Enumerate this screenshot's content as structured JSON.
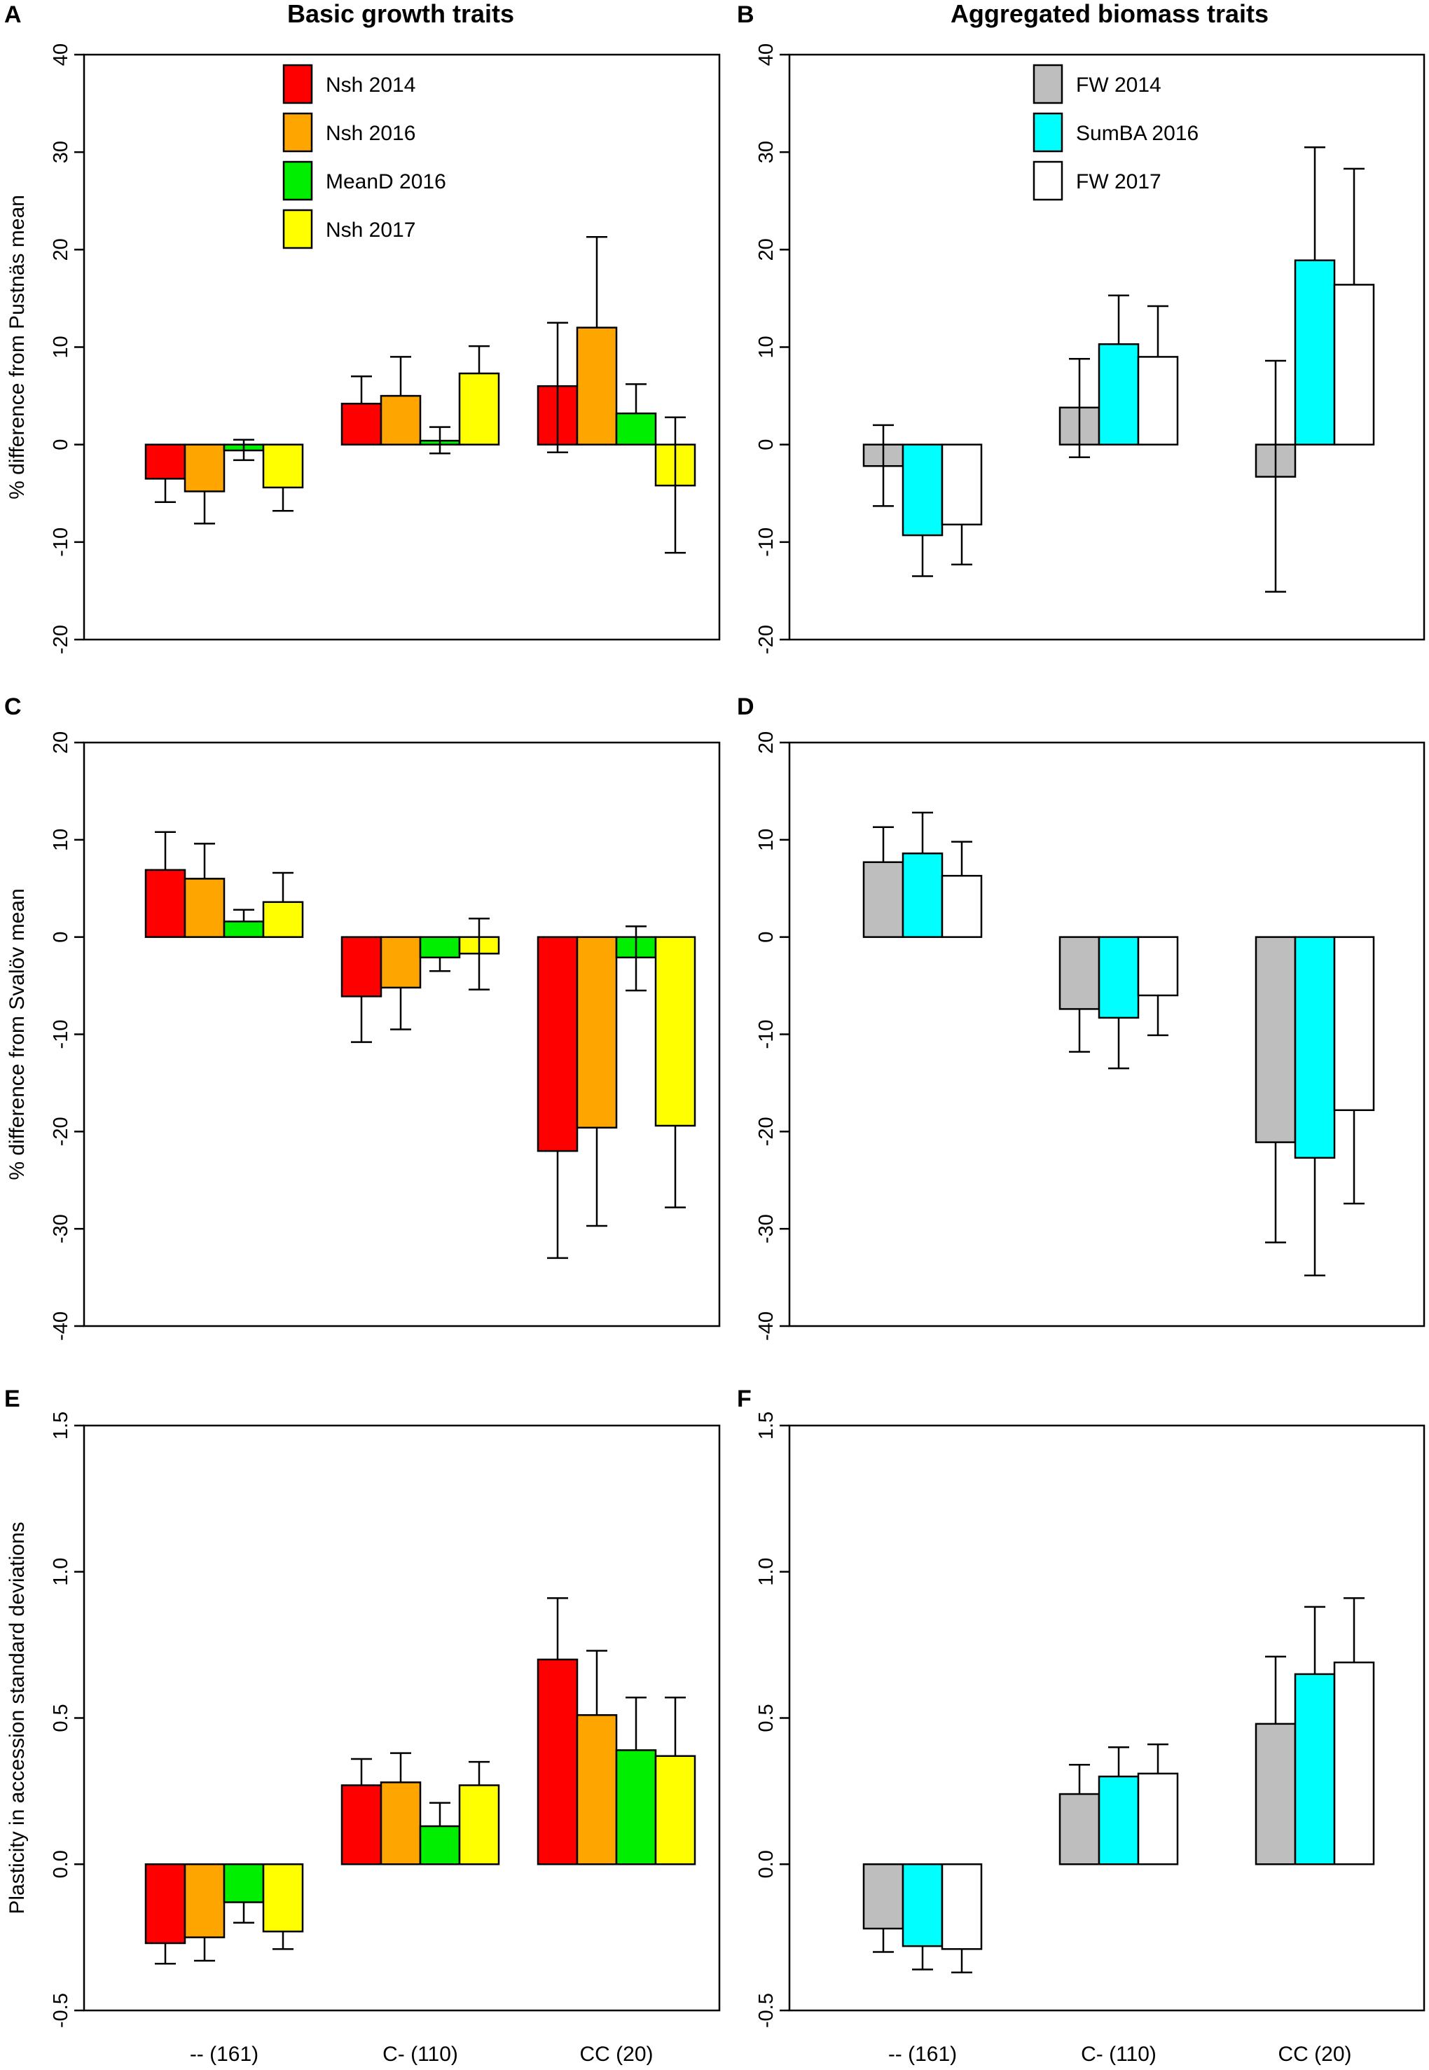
{
  "column_titles": [
    "Basic growth traits",
    "Aggregated biomass traits"
  ],
  "x_categories": [
    "-- (161)",
    "C- (110)",
    "CC (20)"
  ],
  "colors": {
    "Nsh 2014": "#ff0000",
    "Nsh 2016": "#ffa500",
    "MeanD 2016": "#00ee00",
    "Nsh 2017": "#ffff00",
    "FW 2014": "#bebebe",
    "SumBA 2016": "#00ffff",
    "FW 2017": "#ffffff"
  },
  "chart_data": [
    {
      "panel": "A",
      "type": "bar",
      "title": "Basic growth traits",
      "ylabel": "% difference from Pustnäs mean",
      "ylim": [
        -20,
        40
      ],
      "yticks": [
        -20,
        -10,
        0,
        10,
        20,
        30,
        40
      ],
      "categories": [
        "-- (161)",
        "C- (110)",
        "CC (20)"
      ],
      "legend": [
        "Nsh 2014",
        "Nsh 2016",
        "MeanD 2016",
        "Nsh 2017"
      ],
      "series": [
        {
          "name": "Nsh 2014",
          "values": [
            -3.5,
            4.2,
            6.0
          ],
          "err_low": [
            -5.9,
            0,
            -0.8
          ],
          "err_high": [
            0,
            7.0,
            12.5
          ]
        },
        {
          "name": "Nsh 2016",
          "values": [
            -4.8,
            5.0,
            12.0
          ],
          "err_low": [
            -8.1,
            0,
            0
          ],
          "err_high": [
            0,
            9.0,
            21.3
          ]
        },
        {
          "name": "MeanD 2016",
          "values": [
            -0.6,
            0.4,
            3.2
          ],
          "err_low": [
            -1.6,
            -0.9,
            0
          ],
          "err_high": [
            0.5,
            1.8,
            6.2
          ]
        },
        {
          "name": "Nsh 2017",
          "values": [
            -4.4,
            7.3,
            -4.2
          ],
          "err_low": [
            -6.8,
            0,
            -11.1
          ],
          "err_high": [
            0,
            10.1,
            2.8
          ]
        }
      ]
    },
    {
      "panel": "B",
      "type": "bar",
      "title": "Aggregated biomass traits",
      "ylabel": "",
      "ylim": [
        -20,
        40
      ],
      "yticks": [
        -20,
        -10,
        0,
        10,
        20,
        30,
        40
      ],
      "categories": [
        "-- (161)",
        "C- (110)",
        "CC (20)"
      ],
      "legend": [
        "FW 2014",
        "SumBA 2016",
        "FW 2017"
      ],
      "series": [
        {
          "name": "FW 2014",
          "values": [
            -2.2,
            3.8,
            -3.3
          ],
          "err_low": [
            -6.3,
            -1.3,
            -15.1
          ],
          "err_high": [
            2.0,
            8.8,
            8.6
          ]
        },
        {
          "name": "SumBA 2016",
          "values": [
            -9.3,
            10.3,
            18.9
          ],
          "err_low": [
            -13.5,
            0,
            0
          ],
          "err_high": [
            0,
            15.3,
            30.5
          ]
        },
        {
          "name": "FW 2017",
          "values": [
            -8.2,
            9.0,
            16.4
          ],
          "err_low": [
            -12.3,
            0,
            0
          ],
          "err_high": [
            0,
            14.2,
            28.3
          ]
        }
      ]
    },
    {
      "panel": "C",
      "type": "bar",
      "title": "",
      "ylabel": "% difference from Svalöv mean",
      "ylim": [
        -40,
        20
      ],
      "yticks": [
        -40,
        -30,
        -20,
        -10,
        0,
        10,
        20
      ],
      "categories": [
        "-- (161)",
        "C- (110)",
        "CC (20)"
      ],
      "legend": [],
      "series": [
        {
          "name": "Nsh 2014",
          "values": [
            6.9,
            -6.1,
            -22.0
          ],
          "err_low": [
            0,
            -10.8,
            -33.0
          ],
          "err_high": [
            10.8,
            0,
            0
          ]
        },
        {
          "name": "Nsh 2016",
          "values": [
            6.0,
            -5.2,
            -19.6
          ],
          "err_low": [
            0,
            -9.5,
            -29.7
          ],
          "err_high": [
            9.6,
            0,
            0
          ]
        },
        {
          "name": "MeanD 2016",
          "values": [
            1.6,
            -2.1,
            -2.1
          ],
          "err_low": [
            0,
            -3.5,
            -5.5
          ],
          "err_high": [
            2.8,
            0,
            1.1
          ]
        },
        {
          "name": "Nsh 2017",
          "values": [
            3.6,
            -1.7,
            -19.4
          ],
          "err_low": [
            0,
            -5.4,
            -27.8
          ],
          "err_high": [
            6.6,
            1.9,
            0
          ]
        }
      ]
    },
    {
      "panel": "D",
      "type": "bar",
      "title": "",
      "ylabel": "",
      "ylim": [
        -40,
        20
      ],
      "yticks": [
        -40,
        -30,
        -20,
        -10,
        0,
        10,
        20
      ],
      "categories": [
        "-- (161)",
        "C- (110)",
        "CC (20)"
      ],
      "legend": [],
      "series": [
        {
          "name": "FW 2014",
          "values": [
            7.7,
            -7.4,
            -21.1
          ],
          "err_low": [
            0,
            -11.8,
            -31.4
          ],
          "err_high": [
            11.3,
            0,
            0
          ]
        },
        {
          "name": "SumBA 2016",
          "values": [
            8.6,
            -8.3,
            -22.7
          ],
          "err_low": [
            0,
            -13.5,
            -34.8
          ],
          "err_high": [
            12.8,
            0,
            0
          ]
        },
        {
          "name": "FW 2017",
          "values": [
            6.3,
            -6.0,
            -17.8
          ],
          "err_low": [
            0,
            -10.1,
            -27.4
          ],
          "err_high": [
            9.8,
            0,
            0
          ]
        }
      ]
    },
    {
      "panel": "E",
      "type": "bar",
      "title": "",
      "ylabel": "Plasticity in accession standard deviations",
      "ylim": [
        -0.5,
        1.5
      ],
      "yticks": [
        -0.5,
        0.0,
        0.5,
        1.0,
        1.5
      ],
      "categories": [
        "-- (161)",
        "C- (110)",
        "CC (20)"
      ],
      "legend": [],
      "series": [
        {
          "name": "Nsh 2014",
          "values": [
            -0.27,
            0.27,
            0.7
          ],
          "err_low": [
            -0.34,
            0,
            0
          ],
          "err_high": [
            0,
            0.36,
            0.91
          ]
        },
        {
          "name": "Nsh 2016",
          "values": [
            -0.25,
            0.28,
            0.51
          ],
          "err_low": [
            -0.33,
            0,
            0
          ],
          "err_high": [
            0,
            0.38,
            0.73
          ]
        },
        {
          "name": "MeanD 2016",
          "values": [
            -0.13,
            0.13,
            0.39
          ],
          "err_low": [
            -0.2,
            0,
            0
          ],
          "err_high": [
            0,
            0.21,
            0.57
          ]
        },
        {
          "name": "Nsh 2017",
          "values": [
            -0.23,
            0.27,
            0.37
          ],
          "err_low": [
            -0.29,
            0,
            0
          ],
          "err_high": [
            0,
            0.35,
            0.57
          ]
        }
      ]
    },
    {
      "panel": "F",
      "type": "bar",
      "title": "",
      "ylabel": "",
      "ylim": [
        -0.5,
        1.5
      ],
      "yticks": [
        -0.5,
        0.0,
        0.5,
        1.0,
        1.5
      ],
      "categories": [
        "-- (161)",
        "C- (110)",
        "CC (20)"
      ],
      "legend": [],
      "series": [
        {
          "name": "FW 2014",
          "values": [
            -0.22,
            0.24,
            0.48
          ],
          "err_low": [
            -0.3,
            0,
            0
          ],
          "err_high": [
            0,
            0.34,
            0.71
          ]
        },
        {
          "name": "SumBA 2016",
          "values": [
            -0.28,
            0.3,
            0.65
          ],
          "err_low": [
            -0.36,
            0,
            0
          ],
          "err_high": [
            0,
            0.4,
            0.88
          ]
        },
        {
          "name": "FW 2017",
          "values": [
            -0.29,
            0.31,
            0.69
          ],
          "err_low": [
            -0.37,
            0,
            0
          ],
          "err_high": [
            0,
            0.41,
            0.91
          ]
        }
      ]
    }
  ]
}
